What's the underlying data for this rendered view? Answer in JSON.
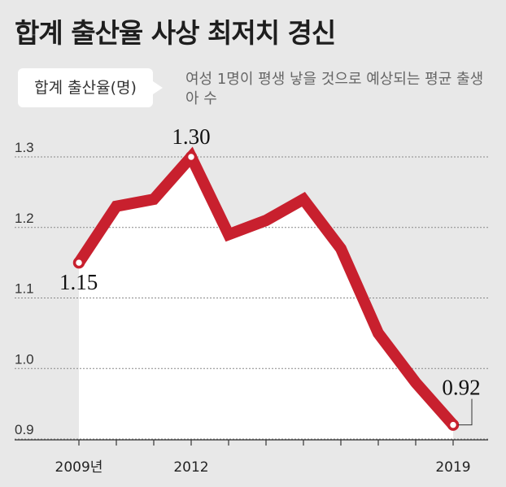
{
  "title": "합계 출산율 사상 최저치 경신",
  "badge": "합계 출산율(명)",
  "note": "여성 1명이 평생 낳을 것으로 예상되는 평균 출생아 수",
  "colors": {
    "line": "#c8202e",
    "background": "#e8e8e8",
    "grid": "#888888"
  },
  "chart_data": {
    "type": "line",
    "x": [
      2009,
      2010,
      2011,
      2012,
      2013,
      2014,
      2015,
      2016,
      2017,
      2018,
      2019
    ],
    "values": [
      1.15,
      1.23,
      1.24,
      1.3,
      1.19,
      1.21,
      1.24,
      1.17,
      1.05,
      0.98,
      0.92
    ],
    "ylim": [
      0.9,
      1.3
    ],
    "yticks": [
      "1.3",
      "1.2",
      "1.1",
      "1.0",
      "0.9"
    ],
    "xtick_labels": [
      {
        "x": 2009,
        "label": "2009년"
      },
      {
        "x": 2012,
        "label": "2012"
      },
      {
        "x": 2019,
        "label": "2019"
      }
    ],
    "annotations": [
      {
        "x": 2009,
        "label": "1.15"
      },
      {
        "x": 2012,
        "label": "1.30"
      },
      {
        "x": 2019,
        "label": "0.92"
      }
    ],
    "grid": true
  }
}
